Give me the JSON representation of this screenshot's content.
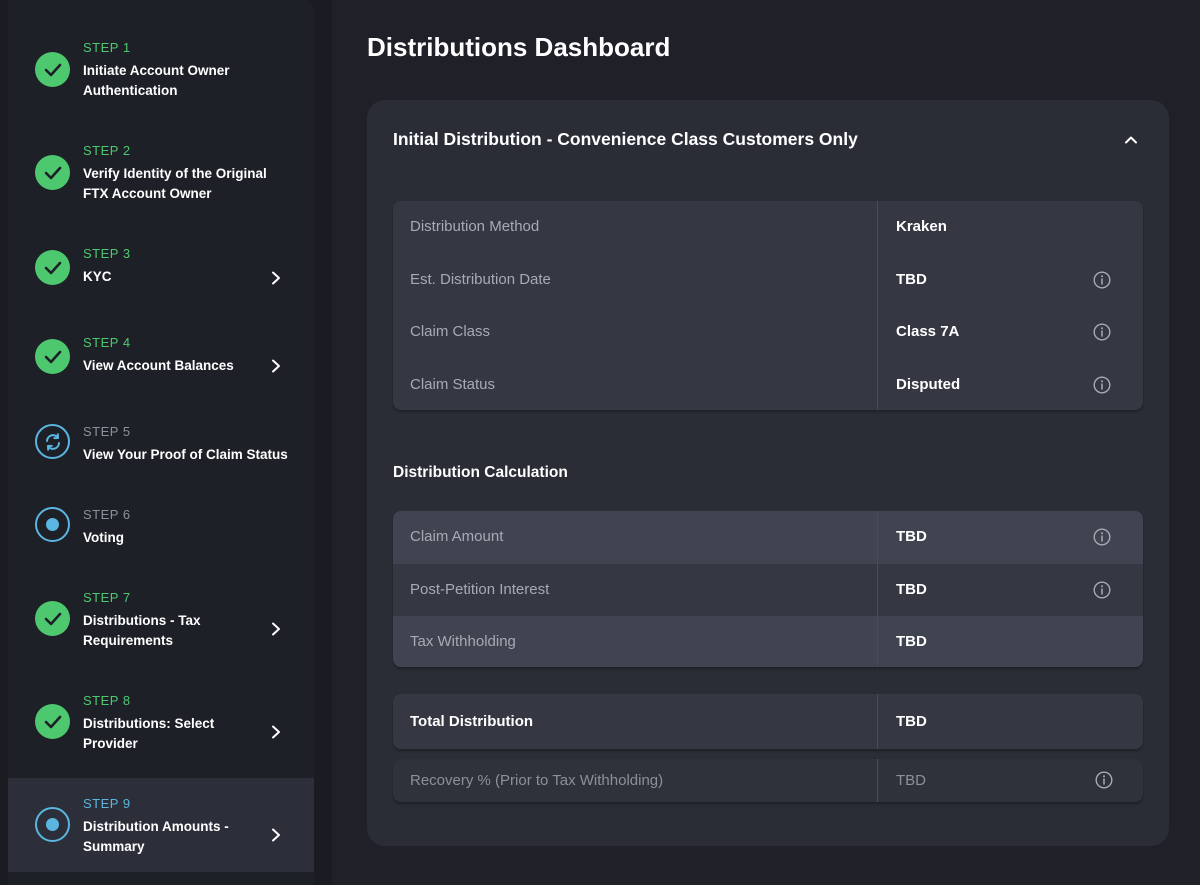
{
  "sidebar": {
    "steps": [
      {
        "number": "STEP 1",
        "title": "Initiate Account Owner Authentication",
        "title_lines": [
          "Initiate Account Owner",
          "Authentication"
        ],
        "status": "complete"
      },
      {
        "number": "STEP 2",
        "title": "Verify Identity of the Original FTX Account Owner",
        "title_lines": [
          "Verify Identity of the Original",
          "FTX Account Owner"
        ],
        "status": "complete"
      },
      {
        "number": "STEP 3",
        "title": "KYC",
        "title_lines": [
          "KYC"
        ],
        "status": "complete"
      },
      {
        "number": "STEP 4",
        "title": "View Account Balances",
        "title_lines": [
          "View Account Balances"
        ],
        "status": "complete"
      },
      {
        "number": "STEP 5",
        "title": "View Your Proof of Claim Status",
        "title_lines": [
          "View Your Proof of Claim Status"
        ],
        "status": "in-progress"
      },
      {
        "number": "STEP 6",
        "title": "Voting",
        "title_lines": [
          "Voting"
        ],
        "status": "pending"
      },
      {
        "number": "STEP 7",
        "title": "Distributions - Tax Requirements",
        "title_lines": [
          "Distributions - Tax",
          "Requirements"
        ],
        "status": "complete"
      },
      {
        "number": "STEP 8",
        "title": "Distributions: Select Provider",
        "title_lines": [
          "Distributions: Select",
          "Provider"
        ],
        "status": "complete"
      },
      {
        "number": "STEP 9",
        "title": "Distribution Amounts - Summary",
        "title_lines": [
          "Distribution Amounts -",
          "Summary"
        ],
        "status": "active"
      }
    ]
  },
  "main": {
    "page_title": "Distributions Dashboard",
    "card": {
      "header": "Initial Distribution - Convenience Class Customers Only",
      "details": [
        {
          "label": "Distribution Method",
          "value": "Kraken"
        },
        {
          "label": "Est. Distribution Date",
          "value": "TBD"
        },
        {
          "label": "Claim Class",
          "value": "Class 7A"
        },
        {
          "label": "Claim Status",
          "value": "Disputed"
        }
      ],
      "calc_title": "Distribution Calculation",
      "calculation": [
        {
          "label": "Claim Amount",
          "value": "TBD"
        },
        {
          "label": "Post-Petition Interest",
          "value": "TBD"
        },
        {
          "label": "Tax Withholding",
          "value": "TBD"
        }
      ],
      "total": {
        "label": "Total Distribution",
        "value": "TBD"
      },
      "recovery": {
        "label": "Recovery % (Prior to Tax Withholding)",
        "value": "TBD"
      }
    }
  },
  "icons": {
    "check": "check-icon",
    "chevron": "chevron-right-icon",
    "info": "info-icon",
    "collapse": "chevron-up-icon",
    "refresh": "refresh-icon",
    "dot": "radio-dot-icon"
  },
  "colors": {
    "complete": "#4ec86f",
    "active": "#5ab6e0",
    "background": "#1b1c22",
    "card": "#2a2c36"
  }
}
